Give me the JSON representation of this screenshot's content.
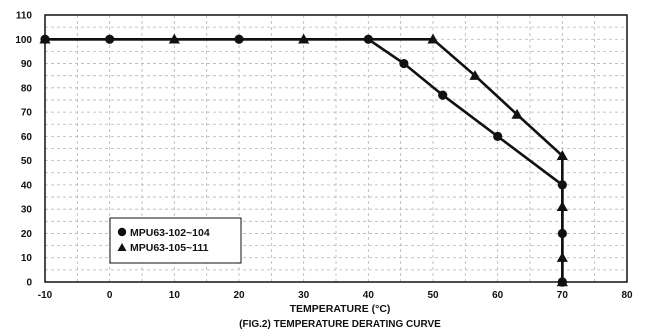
{
  "chart_data": {
    "type": "line",
    "title": "",
    "xlabel": "TEMPERATURE (°C)",
    "ylabel": "",
    "caption": "(FIG.2) TEMPERATURE DERATING CURVE",
    "xlim": [
      -10,
      80
    ],
    "ylim": [
      0,
      110
    ],
    "x_ticks": [
      -10,
      0,
      10,
      20,
      30,
      40,
      50,
      60,
      70,
      80
    ],
    "y_ticks": [
      0,
      10,
      20,
      30,
      40,
      50,
      60,
      70,
      80,
      90,
      100,
      110
    ],
    "grid": true,
    "legend_position": "bottom-left",
    "series": [
      {
        "name": "MPU63-102~104",
        "marker": "circle",
        "color": "#111111",
        "x": [
          -10,
          0,
          20,
          40,
          45.5,
          51.5,
          60,
          70,
          70,
          70,
          70
        ],
        "y": [
          100,
          100,
          100,
          100,
          90,
          77,
          60,
          40,
          20,
          0,
          0
        ]
      },
      {
        "name": "MPU63-105~111",
        "marker": "triangle",
        "color": "#111111",
        "x": [
          -10,
          10,
          30,
          50,
          56.5,
          63,
          70,
          70,
          70,
          70
        ],
        "y": [
          100,
          100,
          100,
          100,
          85,
          69,
          52,
          31,
          10,
          0
        ]
      }
    ]
  }
}
